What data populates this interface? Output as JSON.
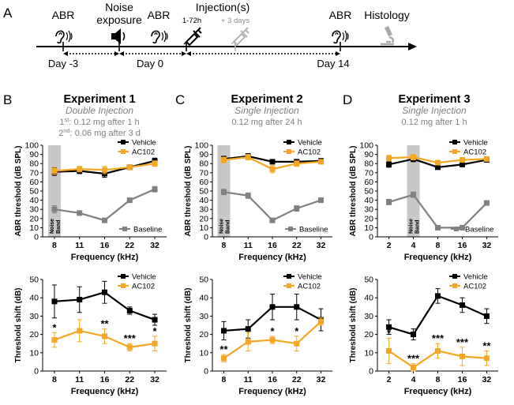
{
  "panel_letters": [
    "A",
    "B",
    "C",
    "D"
  ],
  "timeline": {
    "events": [
      "ABR",
      "Noise exposure",
      "ABR",
      "Injection(s)",
      "ABR",
      "Histology"
    ],
    "injection_window": "1-72h",
    "extra_injection": "+ 3 days",
    "days": [
      "Day -3",
      "Day 0",
      "Day 14"
    ]
  },
  "experiments": [
    {
      "title": "Experiment 1",
      "subtitle": "Double Injection",
      "detail1_sup": "st",
      "detail1": "1",
      "detail1_rest": ": 0.12 mg after 1 h",
      "detail2": "2",
      "detail2_sup": "nd",
      "detail2_rest": ": 0.06 mg after 3 d"
    },
    {
      "title": "Experiment 2",
      "subtitle": "Single Injection",
      "detail1": "0.12 mg after 24 h"
    },
    {
      "title": "Experiment 3",
      "subtitle": "Single Injection",
      "detail1": "0.12 mg after 1 h"
    }
  ],
  "noise_band_label": "Noise Band",
  "colors": {
    "vehicle": "#000000",
    "ac102": "#f5a623",
    "baseline": "#808080",
    "noise_band": "#c8c8c8"
  },
  "chart_data": [
    {
      "type": "line",
      "panel": "B-top",
      "noise_band_at": "8",
      "categories": [
        "8",
        "11",
        "16",
        "22",
        "32"
      ],
      "xlabel": "Frequency (kHz)",
      "ylabel": "ABR threshold (dB SPL)",
      "ylim": [
        0,
        100
      ],
      "yticks": [
        0,
        10,
        20,
        30,
        40,
        50,
        60,
        70,
        80,
        90,
        100
      ],
      "legend": "top-right",
      "legend2": "bottom-right",
      "series": [
        {
          "name": "Vehicle",
          "key": "vehicle",
          "values": [
            71,
            72,
            69,
            76,
            83
          ],
          "err": [
            4,
            3,
            4,
            2,
            3
          ]
        },
        {
          "name": "AC102",
          "key": "ac102",
          "values": [
            72,
            74,
            73,
            76,
            80
          ],
          "err": [
            4,
            3,
            4,
            2,
            3
          ]
        },
        {
          "name": "Baseline",
          "key": "baseline",
          "values": [
            30,
            26,
            18,
            40,
            52
          ],
          "err": [
            4,
            2,
            2,
            2,
            3
          ]
        }
      ],
      "significance": []
    },
    {
      "type": "line",
      "panel": "C-top",
      "noise_band_at": "8",
      "categories": [
        "8",
        "11",
        "16",
        "22",
        "32"
      ],
      "xlabel": "Frequency (kHz)",
      "ylabel": "ABR threshold (dB SPL)",
      "ylim": [
        0,
        100
      ],
      "yticks": [
        0,
        10,
        20,
        30,
        40,
        50,
        60,
        70,
        80,
        90,
        100
      ],
      "legend": "top-right",
      "legend2": "bottom-right",
      "series": [
        {
          "name": "Vehicle",
          "key": "vehicle",
          "values": [
            85,
            88,
            82,
            82,
            83
          ],
          "err": [
            3,
            3,
            2,
            2,
            2
          ]
        },
        {
          "name": "AC102",
          "key": "ac102",
          "values": [
            84,
            87,
            74,
            80,
            82
          ],
          "err": [
            3,
            3,
            4,
            3,
            2
          ]
        },
        {
          "name": "Baseline",
          "key": "baseline",
          "values": [
            49,
            45,
            18,
            31,
            40
          ],
          "err": [
            3,
            3,
            2,
            3,
            2
          ]
        }
      ],
      "significance": []
    },
    {
      "type": "line",
      "panel": "D-top",
      "noise_band_at": "4",
      "categories": [
        "2",
        "4",
        "8",
        "16",
        "32"
      ],
      "xlabel": "Frequency (kHz)",
      "ylabel": "ABR threshold (dB SPL)",
      "ylim": [
        0,
        100
      ],
      "yticks": [
        0,
        10,
        20,
        30,
        40,
        50,
        60,
        70,
        80,
        90,
        100
      ],
      "legend": "top-right",
      "legend2": "bottom-right",
      "series": [
        {
          "name": "Vehicle",
          "key": "vehicle",
          "values": [
            79,
            85,
            76,
            79,
            84
          ],
          "err": [
            3,
            3,
            2,
            2,
            2
          ]
        },
        {
          "name": "AC102",
          "key": "ac102",
          "values": [
            86,
            87,
            81,
            84,
            85
          ],
          "err": [
            3,
            3,
            2,
            2,
            2
          ]
        },
        {
          "name": "Baseline",
          "key": "baseline",
          "values": [
            38,
            46,
            10,
            10,
            37
          ],
          "err": [
            3,
            3,
            1,
            1,
            2
          ]
        }
      ],
      "significance": []
    },
    {
      "type": "line",
      "panel": "B-bottom",
      "categories": [
        "8",
        "11",
        "16",
        "22",
        "32"
      ],
      "xlabel": "Frequency (kHz)",
      "ylabel": "Threshold shift (dB)",
      "ylim": [
        0,
        50
      ],
      "yticks": [
        0,
        10,
        20,
        30,
        40,
        50
      ],
      "legend": "top-right",
      "series": [
        {
          "name": "Vehicle",
          "key": "vehicle",
          "values": [
            38,
            39,
            43,
            33,
            28
          ],
          "err": [
            9,
            7,
            6,
            2,
            3
          ]
        },
        {
          "name": "AC102",
          "key": "ac102",
          "values": [
            17,
            22,
            19,
            13,
            15
          ],
          "err": [
            4,
            6,
            4,
            2,
            4
          ]
        }
      ],
      "significance": [
        "*",
        "",
        "**",
        "***",
        "*"
      ]
    },
    {
      "type": "line",
      "panel": "C-bottom",
      "categories": [
        "8",
        "11",
        "16",
        "22",
        "32"
      ],
      "xlabel": "Frequency (kHz)",
      "ylabel": "Threshold shift (dB)",
      "ylim": [
        0,
        50
      ],
      "yticks": [
        0,
        10,
        20,
        30,
        40,
        50
      ],
      "legend": "top-right",
      "series": [
        {
          "name": "Vehicle",
          "key": "vehicle",
          "values": [
            22,
            23,
            35,
            35,
            28
          ],
          "err": [
            5,
            5,
            7,
            7,
            6
          ]
        },
        {
          "name": "AC102",
          "key": "ac102",
          "values": [
            7,
            16,
            17,
            15,
            27
          ],
          "err": [
            2,
            5,
            2,
            4,
            2
          ]
        }
      ],
      "significance": [
        "**",
        "",
        "*",
        "*",
        ""
      ]
    },
    {
      "type": "line",
      "panel": "D-bottom",
      "categories": [
        "2",
        "4",
        "8",
        "16",
        "32"
      ],
      "xlabel": "Frequency (kHz)",
      "ylabel": "Threshold shift (dB)",
      "ylim": [
        0,
        50
      ],
      "yticks": [
        0,
        10,
        20,
        30,
        40,
        50
      ],
      "legend": "top-right",
      "series": [
        {
          "name": "Vehicle",
          "key": "vehicle",
          "values": [
            24,
            20,
            41,
            36,
            30
          ],
          "err": [
            4,
            3,
            4,
            4,
            4
          ]
        },
        {
          "name": "AC102",
          "key": "ac102",
          "values": [
            11,
            2,
            11,
            8,
            7
          ],
          "err": [
            7,
            2,
            4,
            5,
            4
          ]
        }
      ],
      "significance": [
        "*",
        "***",
        "***",
        "***",
        "**"
      ]
    }
  ]
}
